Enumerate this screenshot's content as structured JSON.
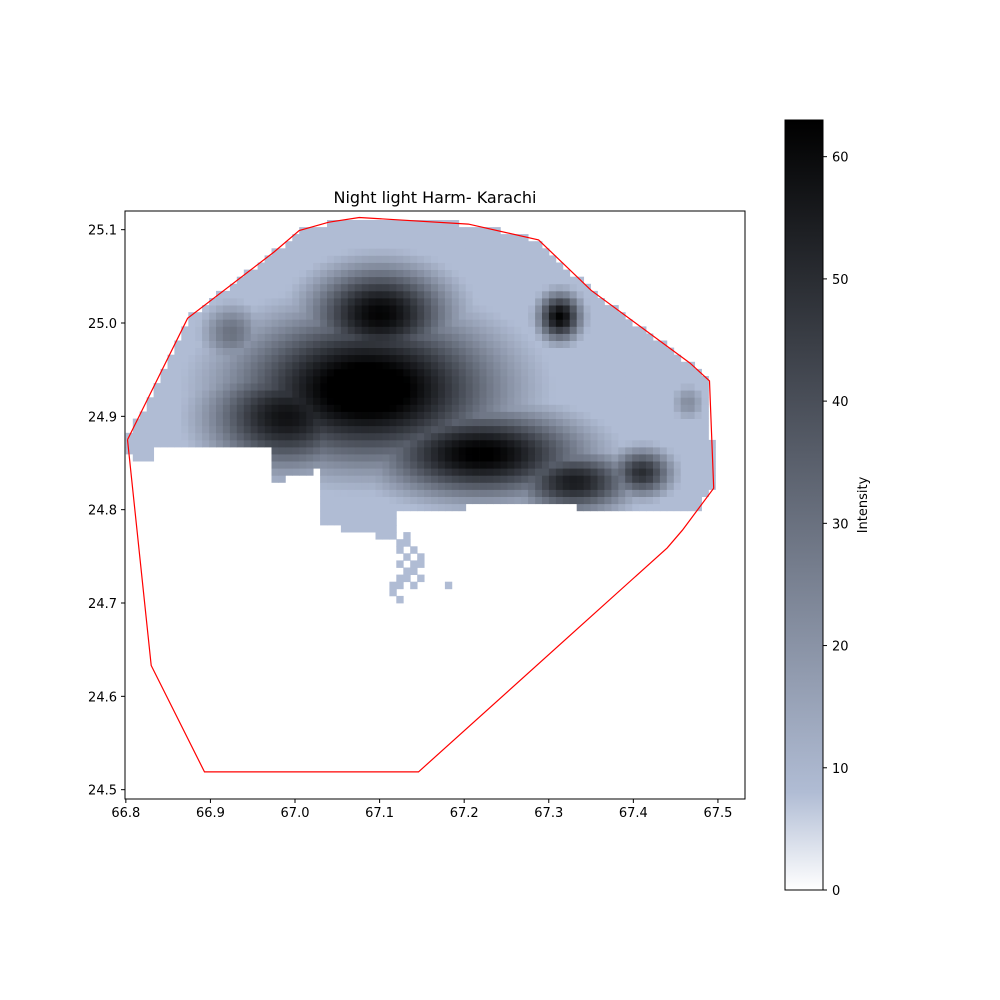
{
  "chart_data": {
    "type": "heatmap",
    "title": "Night light Harm- Karachi",
    "xlabel": "",
    "ylabel": "",
    "xlim": [
      66.799,
      67.532
    ],
    "ylim": [
      24.49,
      25.12
    ],
    "x_ticks": [
      {
        "value": 66.8,
        "label": "66.8"
      },
      {
        "value": 66.9,
        "label": "66.9"
      },
      {
        "value": 67.0,
        "label": "67.0"
      },
      {
        "value": 67.1,
        "label": "67.1"
      },
      {
        "value": 67.2,
        "label": "67.2"
      },
      {
        "value": 67.3,
        "label": "67.3"
      },
      {
        "value": 67.4,
        "label": "67.4"
      },
      {
        "value": 67.5,
        "label": "67.5"
      }
    ],
    "y_ticks": [
      {
        "value": 24.5,
        "label": "24.5"
      },
      {
        "value": 24.6,
        "label": "24.6"
      },
      {
        "value": 24.7,
        "label": "24.7"
      },
      {
        "value": 24.8,
        "label": "24.8"
      },
      {
        "value": 24.9,
        "label": "24.9"
      },
      {
        "value": 25.0,
        "label": "25.0"
      },
      {
        "value": 25.1,
        "label": "25.1"
      }
    ],
    "colorbar": {
      "label": "Intensity",
      "range": [
        0,
        63
      ],
      "ticks": [
        {
          "value": 0,
          "label": "0"
        },
        {
          "value": 10,
          "label": "10"
        },
        {
          "value": 20,
          "label": "20"
        },
        {
          "value": 30,
          "label": "30"
        },
        {
          "value": 40,
          "label": "40"
        },
        {
          "value": 50,
          "label": "50"
        },
        {
          "value": 60,
          "label": "60"
        }
      ],
      "colors": {
        "low": "#ffffff",
        "mid": "#b0bcd4",
        "mid_value": 8,
        "high": "#000000"
      }
    },
    "boundary": {
      "color": "#ff0000",
      "points": [
        [
          66.802,
          24.875
        ],
        [
          66.83,
          24.633
        ],
        [
          66.893,
          24.519
        ],
        [
          67.146,
          24.519
        ],
        [
          67.44,
          24.759
        ],
        [
          67.458,
          24.778
        ],
        [
          67.495,
          24.823
        ],
        [
          67.49,
          24.938
        ],
        [
          67.467,
          24.957
        ],
        [
          67.35,
          25.035
        ],
        [
          67.288,
          25.089
        ],
        [
          67.205,
          25.106
        ],
        [
          67.076,
          25.113
        ],
        [
          67.04,
          25.108
        ],
        [
          67.005,
          25.099
        ],
        [
          66.975,
          25.076
        ],
        [
          66.873,
          25.005
        ],
        [
          66.802,
          24.875
        ]
      ]
    },
    "field": {
      "grid": {
        "x0": 66.8,
        "y0": 24.7,
        "dx": 0.0082,
        "dy": 0.0076,
        "nx": 85,
        "ny": 56
      },
      "base_value": 8,
      "blobs": [
        {
          "x": 67.085,
          "y": 24.93,
          "rx": 0.165,
          "ry": 0.085,
          "peak": 70
        },
        {
          "x": 66.99,
          "y": 24.9,
          "rx": 0.1,
          "ry": 0.06,
          "peak": 58
        },
        {
          "x": 67.1,
          "y": 25.01,
          "rx": 0.09,
          "ry": 0.055,
          "peak": 62
        },
        {
          "x": 67.22,
          "y": 24.86,
          "rx": 0.13,
          "ry": 0.05,
          "peak": 64
        },
        {
          "x": 67.33,
          "y": 24.83,
          "rx": 0.075,
          "ry": 0.035,
          "peak": 55
        },
        {
          "x": 67.41,
          "y": 24.84,
          "rx": 0.04,
          "ry": 0.028,
          "peak": 50
        },
        {
          "x": 67.313,
          "y": 25.007,
          "rx": 0.028,
          "ry": 0.028,
          "peak": 62
        },
        {
          "x": 67.465,
          "y": 24.915,
          "rx": 0.022,
          "ry": 0.022,
          "peak": 22
        },
        {
          "x": 66.925,
          "y": 24.99,
          "rx": 0.04,
          "ry": 0.035,
          "peak": 30
        }
      ],
      "mask": {
        "upper_limit_below_24.87_shape": "south-coast",
        "islands": [
          {
            "x": 67.135,
            "y": 24.745,
            "rx": 0.018,
            "ry": 0.028,
            "value": 8
          },
          {
            "x": 67.12,
            "y": 24.71,
            "rx": 0.012,
            "ry": 0.012,
            "value": 8
          },
          {
            "x": 67.18,
            "y": 24.725,
            "rx": 0.006,
            "ry": 0.008,
            "value": 8
          }
        ]
      }
    }
  }
}
